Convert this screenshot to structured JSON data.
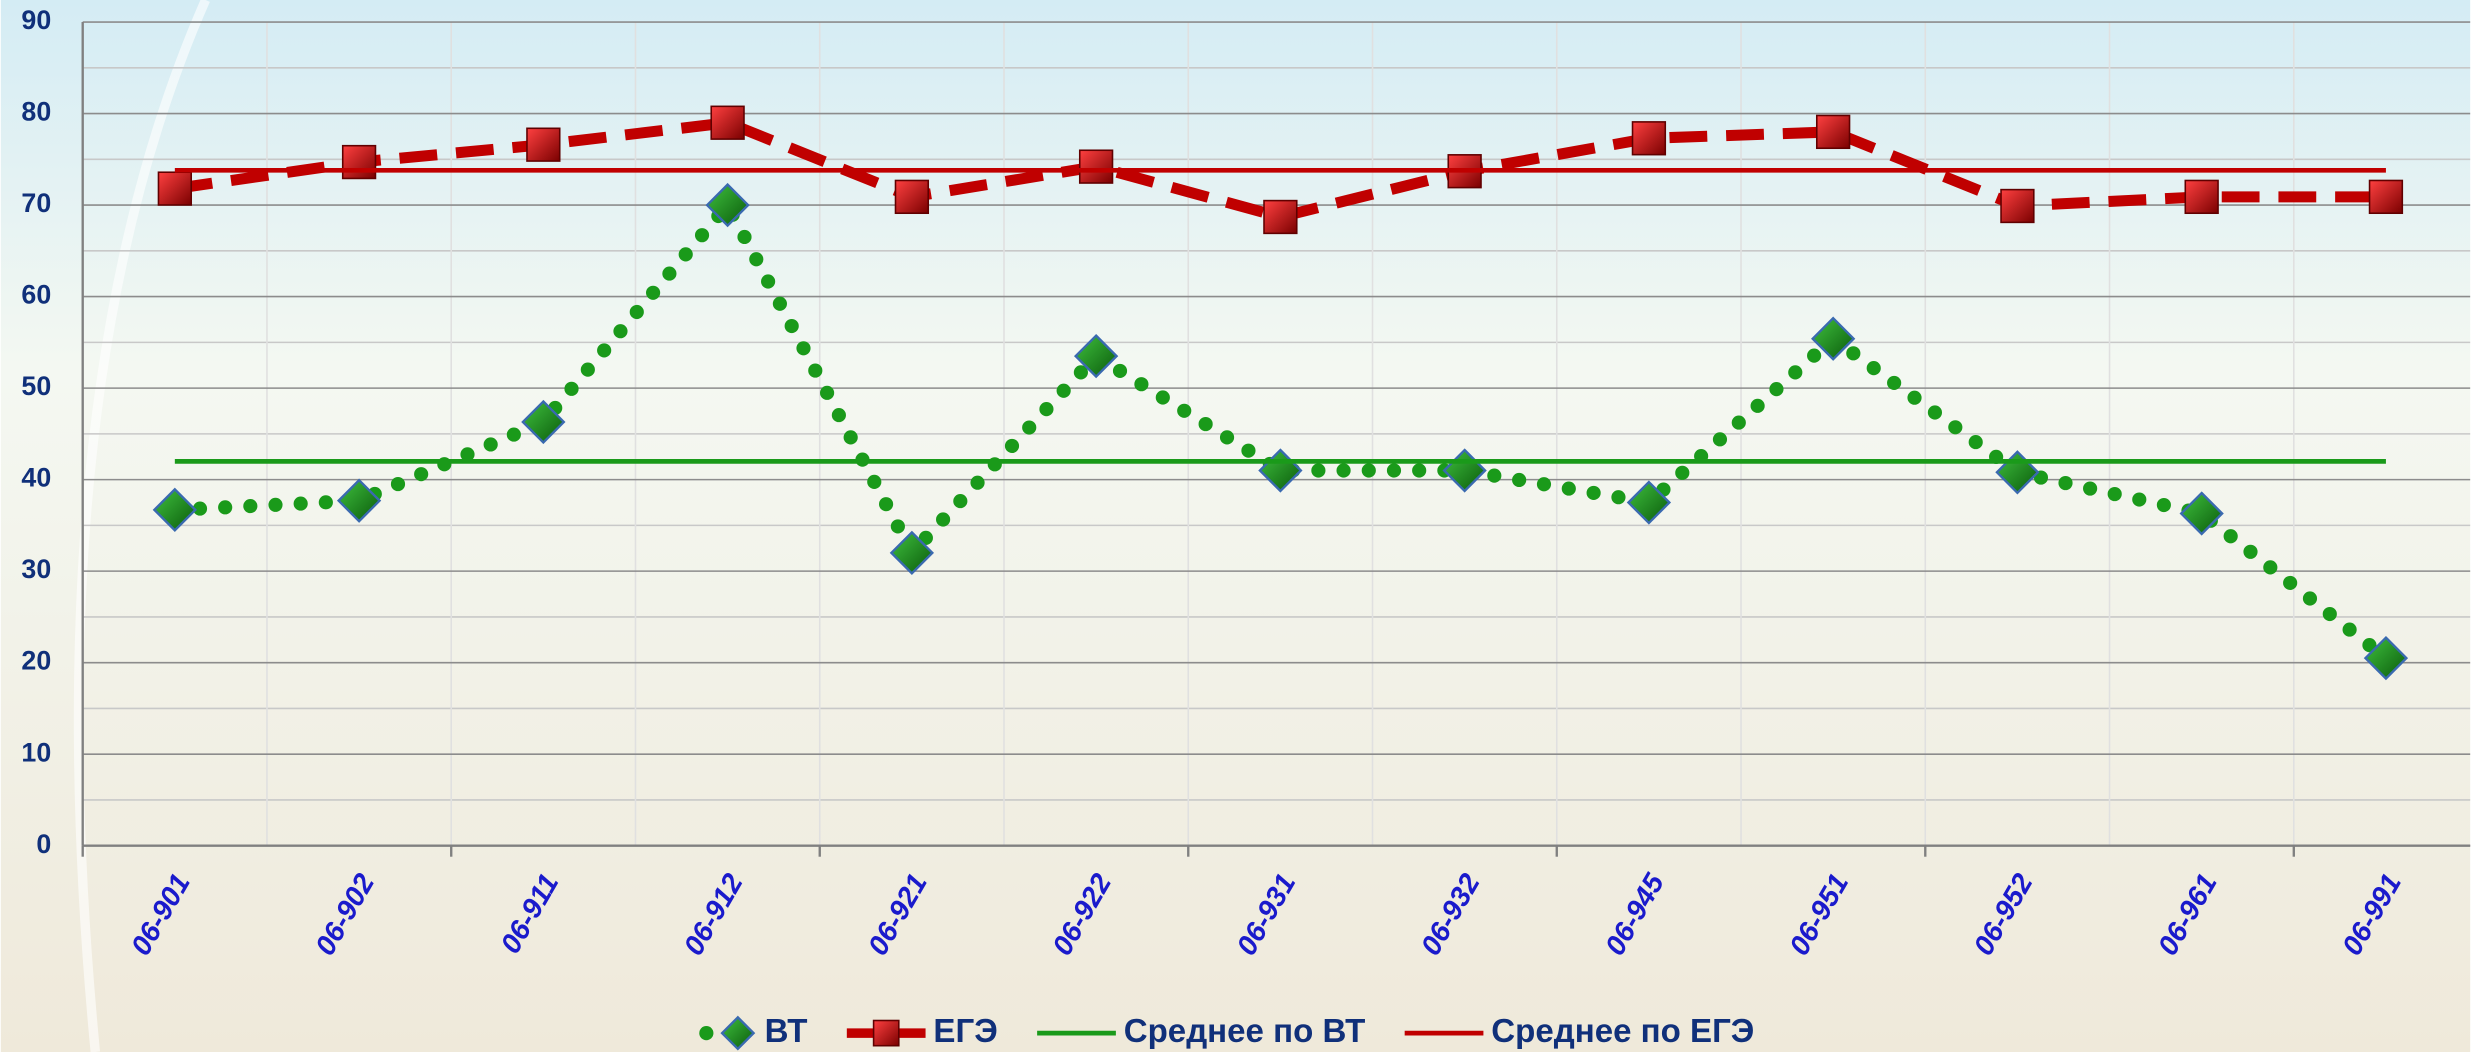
{
  "chart_data": {
    "type": "line",
    "categories": [
      "06-901",
      "06-902",
      "06-911",
      "06-912",
      "06-921",
      "06-922",
      "06-931",
      "06-932",
      "06-945",
      "06-951",
      "06-952",
      "06-961",
      "06-991"
    ],
    "series": [
      {
        "name": "ВТ",
        "color": "#1a9a1a",
        "style": "dotted",
        "marker": "diamond",
        "values": [
          36.7,
          37.7,
          46.3,
          70,
          32,
          53.5,
          41,
          41,
          37.5,
          55.4,
          40.8,
          36.3,
          20.5
        ]
      },
      {
        "name": "ЕГЭ",
        "color": "#c00000",
        "style": "dashed",
        "marker": "square",
        "values": [
          71.8,
          74.7,
          76.6,
          79,
          70.9,
          74.2,
          68.7,
          73.7,
          77.3,
          78,
          69.9,
          70.9,
          70.9
        ]
      },
      {
        "name": "Среднее по ВТ",
        "color": "#1a9a1a",
        "style": "solid",
        "values": [
          42,
          42,
          42,
          42,
          42,
          42,
          42,
          42,
          42,
          42,
          42,
          42,
          42
        ]
      },
      {
        "name": "Среднее по ЕГЭ",
        "color": "#c00000",
        "style": "solid",
        "values": [
          73.8,
          73.8,
          73.8,
          73.8,
          73.8,
          73.8,
          73.8,
          73.8,
          73.8,
          73.8,
          73.8,
          73.8,
          73.8
        ]
      }
    ],
    "ylim": [
      0,
      90
    ],
    "yticks": [
      0,
      10,
      20,
      30,
      40,
      50,
      60,
      70,
      80,
      90
    ],
    "grid": true
  }
}
